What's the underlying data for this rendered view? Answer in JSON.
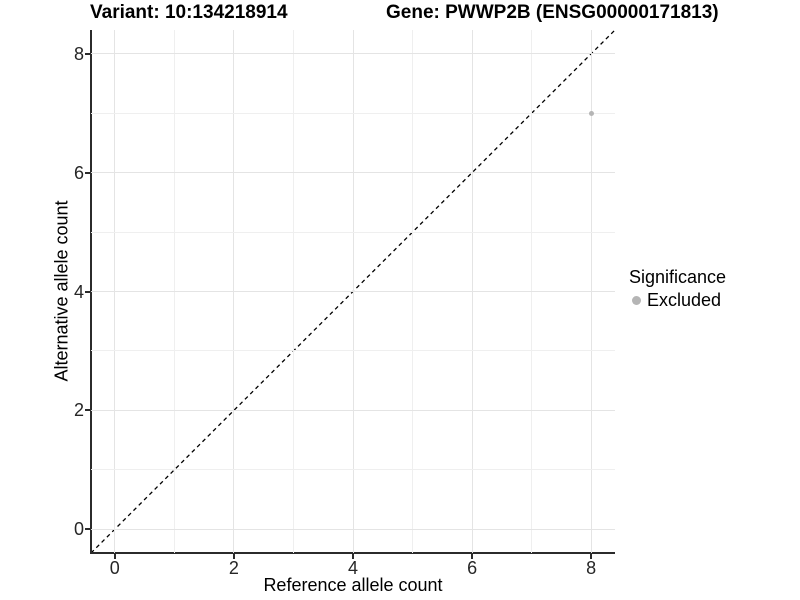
{
  "titles": {
    "variant": "Variant: 10:134218914",
    "gene": "Gene: PWWP2B (ENSG00000171813)"
  },
  "chart_data": {
    "type": "scatter",
    "title": "Variant: 10:134218914    Gene: PWWP2B (ENSG00000171813)",
    "xlabel": "Reference allele count",
    "ylabel": "Alternative allele count",
    "xlim": [
      -0.4,
      8.4
    ],
    "ylim": [
      -0.4,
      8.4
    ],
    "xticks": [
      0,
      2,
      4,
      6,
      8
    ],
    "yticks": [
      0,
      2,
      4,
      6,
      8
    ],
    "grid": {
      "every": 1,
      "major_color": "#e4e4e4",
      "minor_color": "#efefef"
    },
    "identity_line": {
      "slope": 1,
      "intercept": 0,
      "style": "dashed",
      "color": "#000000"
    },
    "series": [
      {
        "name": "Excluded",
        "color": "#b5b5b5",
        "points": [
          {
            "x": 8,
            "y": 7
          }
        ]
      }
    ],
    "legend": {
      "title": "Significance",
      "position": "right",
      "items": [
        {
          "label": "Excluded",
          "color": "#b5b5b5"
        }
      ]
    }
  },
  "colors": {
    "background": "#ffffff",
    "axis_line": "#2b2b2b",
    "tick_text": "#262626",
    "point": "#b5b5b5"
  }
}
